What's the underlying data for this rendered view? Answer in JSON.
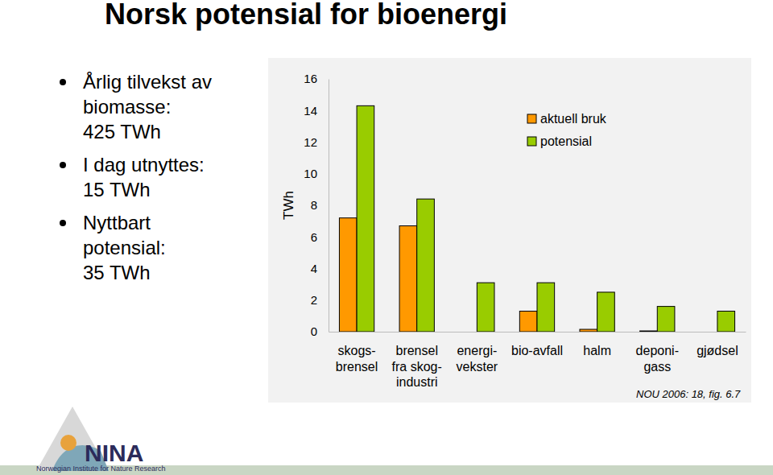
{
  "chart_data": {
    "type": "bar",
    "title": "Norsk potensial for bioenergi",
    "notes": [
      "Årlig tilvekst av\nbiomasse:\n425 TWh",
      "I dag utnyttes:\n15 TWh",
      "Nyttbart\npotensial:\n35 TWh"
    ],
    "y_label": "TWh",
    "source": "NOU 2006: 18, fig. 6.7",
    "categories": [
      "skogs-\nbrensel",
      "brensel\nfra skog-\nindustri",
      "energi-\nvekster",
      "bio-avfall",
      "halm",
      "deponi-\ngass",
      "gjødsel"
    ],
    "series": [
      {
        "name": "aktuell bruk",
        "color": "#ff9900",
        "values": [
          7.2,
          6.7,
          null,
          1.3,
          0.15,
          0.05,
          null
        ]
      },
      {
        "name": "potensial",
        "color": "#99cc00",
        "values": [
          14.3,
          8.4,
          3.1,
          3.1,
          2.5,
          1.6,
          1.3
        ]
      }
    ],
    "ylim": [
      0,
      16
    ],
    "yticks": [
      0,
      2,
      4,
      6,
      8,
      10,
      12,
      14,
      16
    ],
    "grid": false,
    "legend": "top-right"
  },
  "logo": {
    "name": "NINA",
    "subtitle": "Norwegian Institute for Nature Research"
  }
}
